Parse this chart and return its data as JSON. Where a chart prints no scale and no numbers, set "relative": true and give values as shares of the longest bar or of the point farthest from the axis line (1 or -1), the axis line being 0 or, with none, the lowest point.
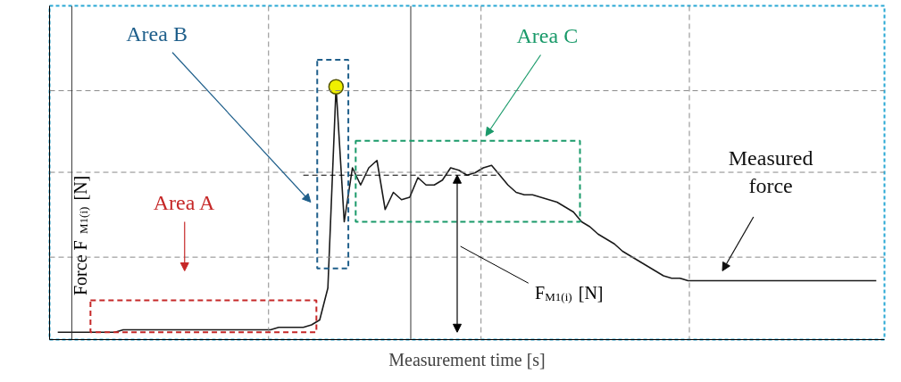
{
  "chart_data": {
    "type": "line",
    "relative": true,
    "xlabel": "Measurement time [s]",
    "ylabel": "Force F$_{M1(i)}$ [N]",
    "grid": true,
    "ref_lines": [
      {
        "axis": "y",
        "value": 0.64,
        "color": "#000000",
        "line_style": "dashed"
      }
    ],
    "categories": [
      null,
      null,
      null,
      null,
      null,
      null,
      null,
      null,
      null,
      null,
      null,
      null,
      null,
      null,
      null,
      null,
      null,
      null,
      null,
      null,
      null,
      null,
      null,
      null,
      null,
      null,
      null,
      null,
      null,
      null,
      null,
      null,
      null,
      null,
      null,
      null,
      null,
      null,
      null,
      null,
      null,
      null,
      null,
      null,
      null,
      null,
      null,
      null,
      null,
      null,
      null,
      null,
      null,
      null,
      null,
      null,
      null,
      null,
      null,
      null,
      null,
      null,
      null,
      null,
      null,
      null,
      null,
      null,
      null,
      null,
      null,
      null,
      null,
      null,
      null,
      null,
      null,
      null,
      null,
      null,
      null,
      null,
      null,
      null,
      null,
      null,
      null,
      null,
      null,
      null,
      null,
      null,
      null,
      null,
      null,
      null,
      null,
      null,
      null,
      null,
      null
    ],
    "series": [
      {
        "color": "#1a1a1a",
        "values": [
          0,
          0,
          0,
          0,
          0,
          0,
          0,
          0,
          0.01,
          0.01,
          0.01,
          0.01,
          0.01,
          0.01,
          0.01,
          0.01,
          0.01,
          0.01,
          0.01,
          0.01,
          0.01,
          0.01,
          0.01,
          0.01,
          0.01,
          0.01,
          0.01,
          0.02,
          0.02,
          0.02,
          0.02,
          0.03,
          0.05,
          0.18,
          1.0,
          0.45,
          0.67,
          0.6,
          0.67,
          0.7,
          0.5,
          0.57,
          0.54,
          0.55,
          0.63,
          0.6,
          0.6,
          0.62,
          0.67,
          0.66,
          0.64,
          0.65,
          0.67,
          0.68,
          0.64,
          0.6,
          0.57,
          0.56,
          0.56,
          0.55,
          0.54,
          0.53,
          0.51,
          0.49,
          0.45,
          0.43,
          0.4,
          0.38,
          0.36,
          0.33,
          0.31,
          0.29,
          0.27,
          0.25,
          0.23,
          0.22,
          0.22,
          0.21,
          0.21,
          0.21,
          0.21,
          0.21,
          0.21,
          0.21,
          0.21,
          0.21,
          0.21,
          0.21,
          0.21,
          0.21,
          0.21,
          0.21,
          0.21,
          0.21,
          0.21,
          0.21,
          0.21,
          0.21,
          0.21,
          0.21,
          0.21
        ]
      }
    ],
    "annotations": [
      "Area A",
      "Area B",
      "Area C",
      "Measured\nforce",
      "F$_{M1(i)}$ [N]"
    ]
  }
}
